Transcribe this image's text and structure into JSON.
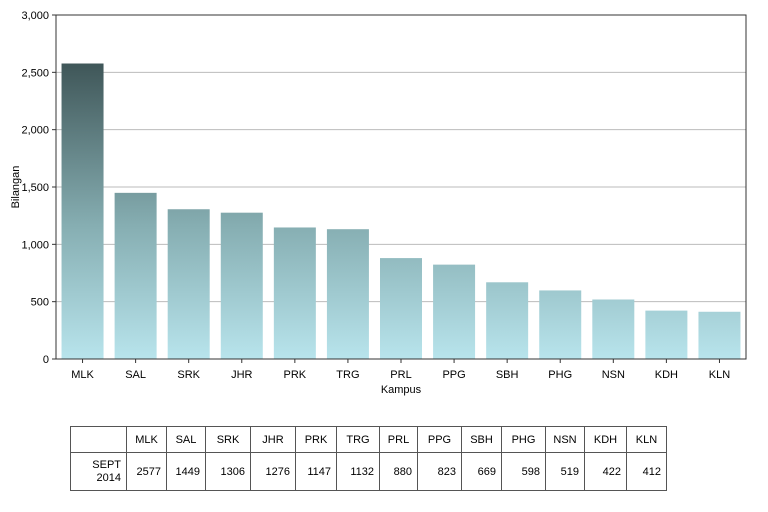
{
  "chart_data": {
    "type": "bar",
    "title": "",
    "xlabel": "Kampus",
    "ylabel": "Bilangan",
    "ylim": [
      0,
      3000
    ],
    "yticks": [
      "0",
      "500",
      "1,000",
      "1,500",
      "2,000",
      "2,500",
      "3,000"
    ],
    "ytick_values": [
      0,
      500,
      1000,
      1500,
      2000,
      2500,
      3000
    ],
    "grid": true,
    "categories": [
      "MLK",
      "SAL",
      "SRK",
      "JHR",
      "PRK",
      "TRG",
      "PRL",
      "PPG",
      "SBH",
      "PHG",
      "NSN",
      "KDH",
      "KLN"
    ],
    "series": [
      {
        "name": "SEPT 2014",
        "values": [
          2577,
          1449,
          1306,
          1276,
          1147,
          1132,
          880,
          823,
          669,
          598,
          519,
          422,
          412
        ]
      }
    ],
    "colors": {
      "bar_top": "#3f5658",
      "bar_mid": "#86aeb2",
      "bar_bottom": "#b8e4ec",
      "grid": "#bbbbbb"
    }
  },
  "table": {
    "row_label_line1": "SEPT",
    "row_label_line2": "2014"
  }
}
